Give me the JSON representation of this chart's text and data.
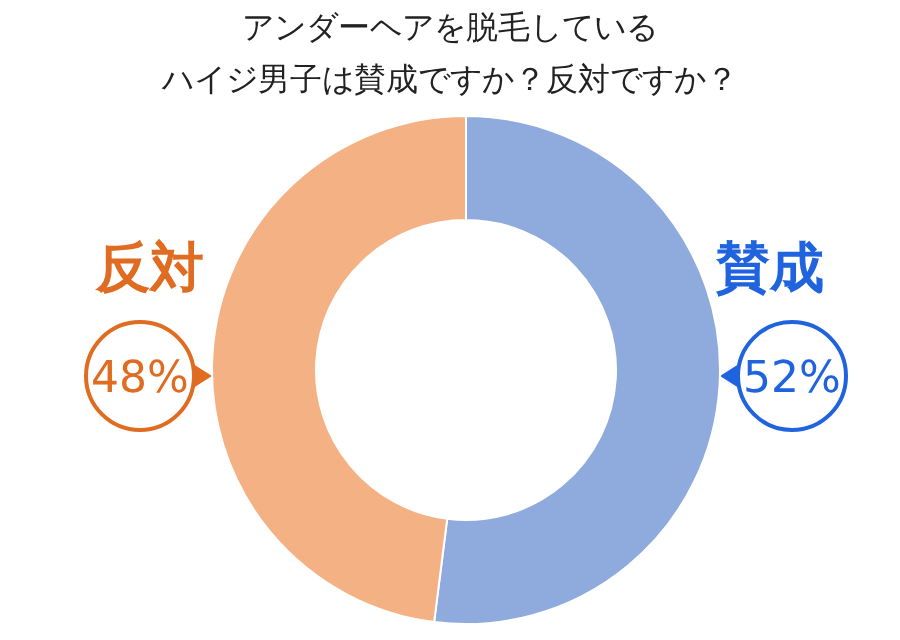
{
  "chart_data": {
    "type": "donut",
    "title": "アンダーヘアを脱毛している",
    "subtitle": "ハイジ男子は賛成ですか？反対ですか？",
    "categories": [
      "賛成",
      "反対"
    ],
    "values": [
      52,
      48
    ],
    "colors": [
      "#8faadc",
      "#f4b183"
    ],
    "value_labels": [
      "52%",
      "48%"
    ],
    "legend": false
  }
}
